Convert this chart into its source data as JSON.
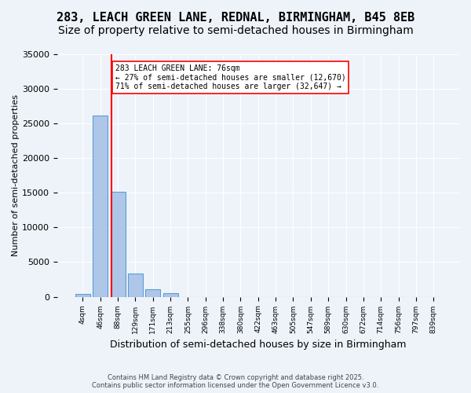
{
  "title": "283, LEACH GREEN LANE, REDNAL, BIRMINGHAM, B45 8EB",
  "subtitle": "Size of property relative to semi-detached houses in Birmingham",
  "xlabel": "Distribution of semi-detached houses by size in Birmingham",
  "ylabel": "Number of semi-detached properties",
  "footer_line1": "Contains HM Land Registry data © Crown copyright and database right 2025.",
  "footer_line2": "Contains public sector information licensed under the Open Government Licence v3.0.",
  "bin_labels": [
    "4sqm",
    "46sqm",
    "88sqm",
    "129sqm",
    "171sqm",
    "213sqm",
    "255sqm",
    "296sqm",
    "338sqm",
    "380sqm",
    "422sqm",
    "463sqm",
    "505sqm",
    "547sqm",
    "589sqm",
    "630sqm",
    "672sqm",
    "714sqm",
    "756sqm",
    "797sqm",
    "839sqm"
  ],
  "bar_values": [
    400,
    26100,
    15200,
    3350,
    1100,
    550,
    0,
    0,
    0,
    0,
    0,
    0,
    0,
    0,
    0,
    0,
    0,
    0,
    0,
    0,
    0
  ],
  "bar_color": "#aec6e8",
  "bar_edge_color": "#5a9fd4",
  "background_color": "#eef3fa",
  "grid_color": "#ffffff",
  "red_line_x": 1.65,
  "annotation_text_line1": "283 LEACH GREEN LANE: 76sqm",
  "annotation_text_line2": "← 27% of semi-detached houses are smaller (12,670)",
  "annotation_text_line3": "71% of semi-detached houses are larger (32,647) →",
  "ylim": [
    0,
    35000
  ],
  "yticks": [
    0,
    5000,
    10000,
    15000,
    20000,
    25000,
    30000,
    35000
  ],
  "title_fontsize": 11,
  "subtitle_fontsize": 10
}
